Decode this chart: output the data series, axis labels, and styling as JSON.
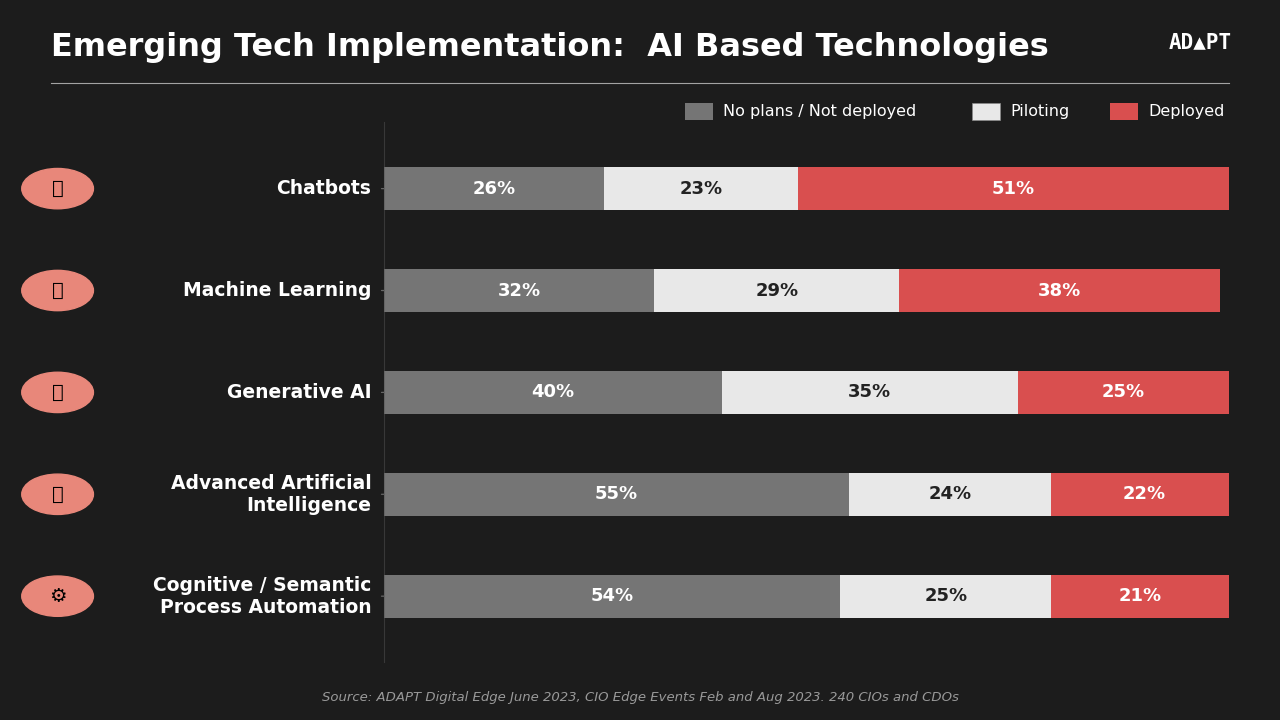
{
  "title": "Emerging Tech Implementation:  AI Based Technologies",
  "background_color": "#1c1c1c",
  "title_color": "#ffffff",
  "title_fontsize": 23,
  "categories": [
    "Chatbots",
    "Machine Learning",
    "Generative AI",
    "Advanced Artificial\nIntelligence",
    "Cognitive / Semantic\nProcess Automation"
  ],
  "no_plans": [
    26,
    32,
    40,
    55,
    54
  ],
  "piloting": [
    23,
    29,
    35,
    24,
    25
  ],
  "deployed": [
    51,
    38,
    25,
    22,
    21
  ],
  "no_plans_color": "#757575",
  "piloting_color": "#e8e8e8",
  "deployed_color": "#d94f4f",
  "bar_text_color_dark": "#222222",
  "bar_text_color_light": "#ffffff",
  "legend_labels": [
    "No plans / Not deployed",
    "Piloting",
    "Deployed"
  ],
  "source_text": "Source: ADAPT Digital Edge June 2023, CIO Edge Events Feb and Aug 2023. 240 CIOs and CDOs",
  "bar_height": 0.42,
  "xlim": [
    0,
    100
  ],
  "text_fontsize": 13,
  "legend_fontsize": 11.5,
  "source_fontsize": 9.5,
  "icon_color": "#e8877a"
}
